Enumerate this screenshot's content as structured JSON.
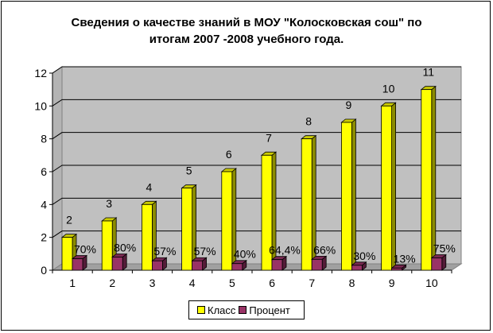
{
  "chart_data": {
    "type": "bar",
    "title_lines": [
      "Сведения о качестве знаний в МОУ \"Колосковская сош\" по",
      "итогам 2007 -2008 учебного года."
    ],
    "categories": [
      "1",
      "2",
      "3",
      "4",
      "5",
      "6",
      "7",
      "8",
      "9",
      "10"
    ],
    "series": [
      {
        "name": "Класс",
        "color": "#ffff00",
        "values": [
          2,
          3,
          4,
          5,
          6,
          7,
          8,
          9,
          10,
          11
        ],
        "labels": [
          "2",
          "3",
          "4",
          "5",
          "6",
          "7",
          "8",
          "9",
          "10",
          "11"
        ]
      },
      {
        "name": "Процент",
        "color": "#993366",
        "values": [
          0.7,
          0.8,
          0.57,
          0.57,
          0.4,
          0.644,
          0.66,
          0.3,
          0.13,
          0.75
        ],
        "labels": [
          "70%",
          "80%",
          "57%",
          "57%",
          "40%",
          "64,4%",
          "66%",
          "30%",
          "13%",
          "75%"
        ]
      }
    ],
    "yticks": [
      "0",
      "2",
      "4",
      "6",
      "8",
      "10",
      "12"
    ],
    "ylim": [
      0,
      12
    ],
    "grid": true,
    "legend_position": "bottom",
    "wall_color": "#c0c0c0"
  }
}
